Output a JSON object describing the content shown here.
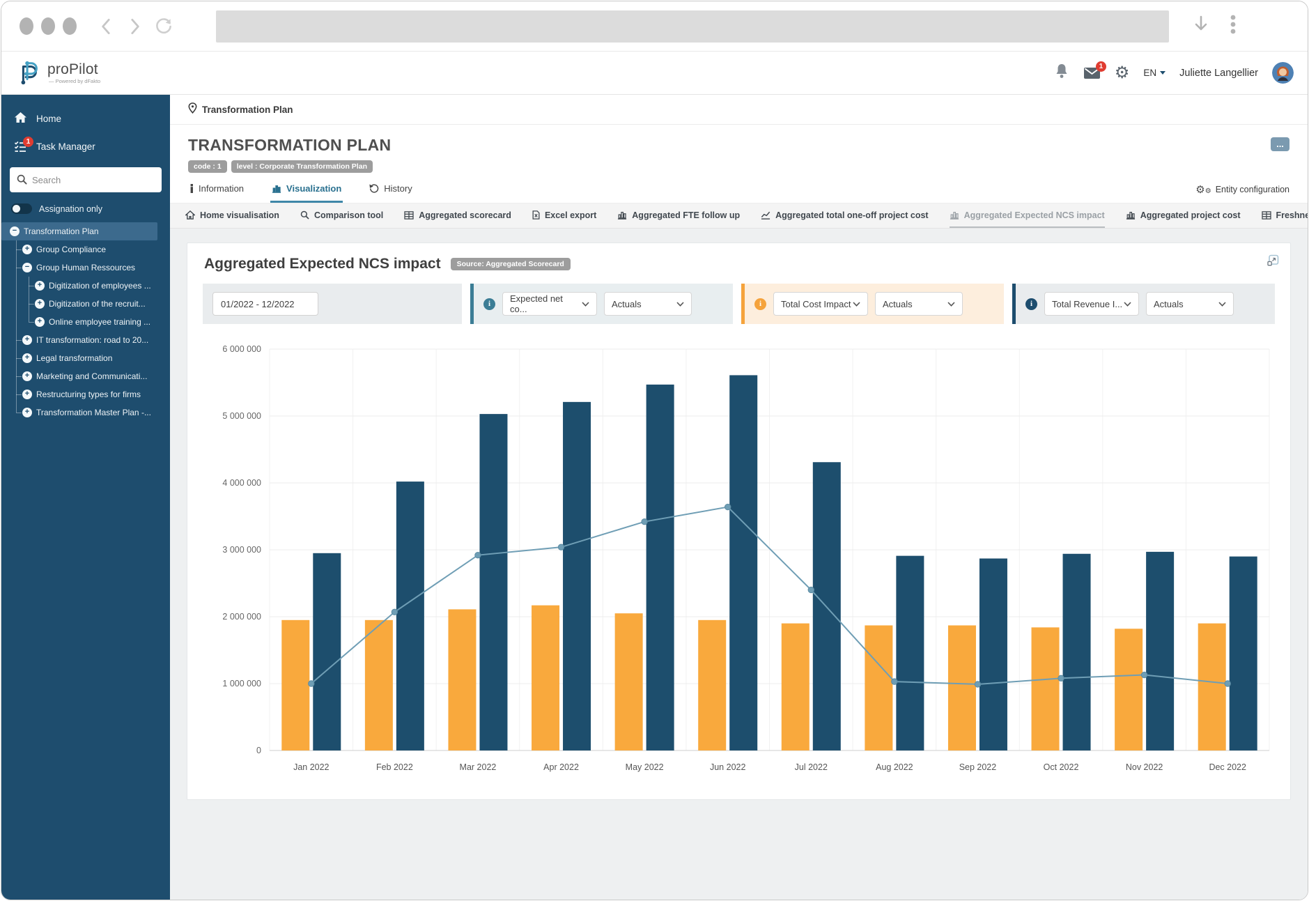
{
  "header": {
    "logo_name": "proPilot",
    "logo_sub": "— Powered by dFakto",
    "mail_badge": "1",
    "lang": "EN",
    "user_name": "Juliette Langellier"
  },
  "sidebar": {
    "items": [
      {
        "label": "Home"
      },
      {
        "label": "Task Manager",
        "badge": "1"
      }
    ],
    "search_placeholder": "Search",
    "assignation_label": "Assignation only",
    "tree": [
      {
        "label": "Transformation Plan",
        "state": "minus",
        "level": 0,
        "selected": true
      },
      {
        "label": "Group Compliance",
        "state": "plus",
        "level": 1
      },
      {
        "label": "Group Human Ressources",
        "state": "minus",
        "level": 1
      },
      {
        "label": "Digitization of employees ...",
        "state": "plus",
        "level": 2
      },
      {
        "label": "Digitization of the recruit...",
        "state": "plus",
        "level": 2
      },
      {
        "label": "Online employee training ...",
        "state": "plus",
        "level": 2
      },
      {
        "label": "IT transformation: road to 20...",
        "state": "plus",
        "level": 1
      },
      {
        "label": "Legal transformation",
        "state": "plus",
        "level": 1
      },
      {
        "label": "Marketing and Communicati...",
        "state": "plus",
        "level": 1
      },
      {
        "label": "Restructuring types for firms",
        "state": "plus",
        "level": 1
      },
      {
        "label": "Transformation Master Plan -...",
        "state": "plus",
        "level": 1
      }
    ]
  },
  "breadcrumb": "Transformation Plan",
  "page": {
    "title": "TRANSFORMATION PLAN",
    "badges": [
      "code : 1",
      "level : Corporate Transformation Plan"
    ],
    "more_label": "...",
    "tabs": [
      {
        "label": "Information",
        "icon": "info",
        "active": false
      },
      {
        "label": "Visualization",
        "icon": "bar-chart",
        "active": true
      },
      {
        "label": "History",
        "icon": "history",
        "active": false
      }
    ],
    "entity_config_label": "Entity configuration"
  },
  "subtabs": [
    {
      "label": "Home visualisation",
      "icon": "home",
      "active": false
    },
    {
      "label": "Comparison tool",
      "icon": "magnifier",
      "active": false
    },
    {
      "label": "Aggregated scorecard",
      "icon": "table",
      "active": false
    },
    {
      "label": "Excel export",
      "icon": "excel",
      "active": false
    },
    {
      "label": "Aggregated FTE follow up",
      "icon": "bar-chart",
      "active": false
    },
    {
      "label": "Aggregated total one-off project cost",
      "icon": "line-chart",
      "active": false
    },
    {
      "label": "Aggregated Expected NCS impact",
      "icon": "bar-chart",
      "active": true
    },
    {
      "label": "Aggregated project cost",
      "icon": "bar-chart",
      "active": false
    },
    {
      "label": "Freshness of data - Project",
      "icon": "table",
      "active": false
    }
  ],
  "card": {
    "title": "Aggregated Expected NCS impact",
    "source_badge": "Source: Aggregated Scorecard",
    "filters": [
      {
        "type": "date",
        "value": "01/2022 - 12/2022",
        "bg": "#e9ecee"
      },
      {
        "type": "selects",
        "accent": "#3b7d95",
        "bg": "#e8eef0",
        "selects": [
          "Expected net co...",
          "Actuals"
        ]
      },
      {
        "type": "selects",
        "accent": "#f5a33c",
        "bg": "#fdeedd",
        "selects": [
          "Total Cost Impact",
          "Actuals"
        ]
      },
      {
        "type": "selects",
        "accent": "#1d4d6e",
        "bg": "#e9ecee",
        "selects": [
          "Total Revenue I...",
          "Actuals"
        ]
      }
    ]
  },
  "chart_data": {
    "type": "bar+line",
    "categories": [
      "Jan 2022",
      "Feb 2022",
      "Mar 2022",
      "Apr 2022",
      "May 2022",
      "Jun 2022",
      "Jul 2022",
      "Aug 2022",
      "Sep 2022",
      "Oct 2022",
      "Nov 2022",
      "Dec 2022"
    ],
    "series": [
      {
        "name": "Total Cost Impact (Actuals)",
        "type": "bar",
        "color": "#f9a93d",
        "values": [
          1950000,
          1950000,
          2110000,
          2170000,
          2050000,
          1950000,
          1900000,
          1870000,
          1870000,
          1840000,
          1820000,
          1900000
        ]
      },
      {
        "name": "Total Revenue I... (Actuals)",
        "type": "bar",
        "color": "#1d4e6d",
        "values": [
          2950000,
          4020000,
          5030000,
          5210000,
          5470000,
          5610000,
          4310000,
          2910000,
          2870000,
          2940000,
          2970000,
          2900000
        ]
      },
      {
        "name": "Expected net co... (Actuals)",
        "type": "line",
        "color": "#6f9eb5",
        "values": [
          1000000,
          2070000,
          2920000,
          3040000,
          3420000,
          3640000,
          2400000,
          1030000,
          990000,
          1080000,
          1130000,
          1000000
        ]
      }
    ],
    "ylim": [
      0,
      6000000
    ],
    "ytick_step": 1000000,
    "grid": true,
    "legend": "none"
  }
}
